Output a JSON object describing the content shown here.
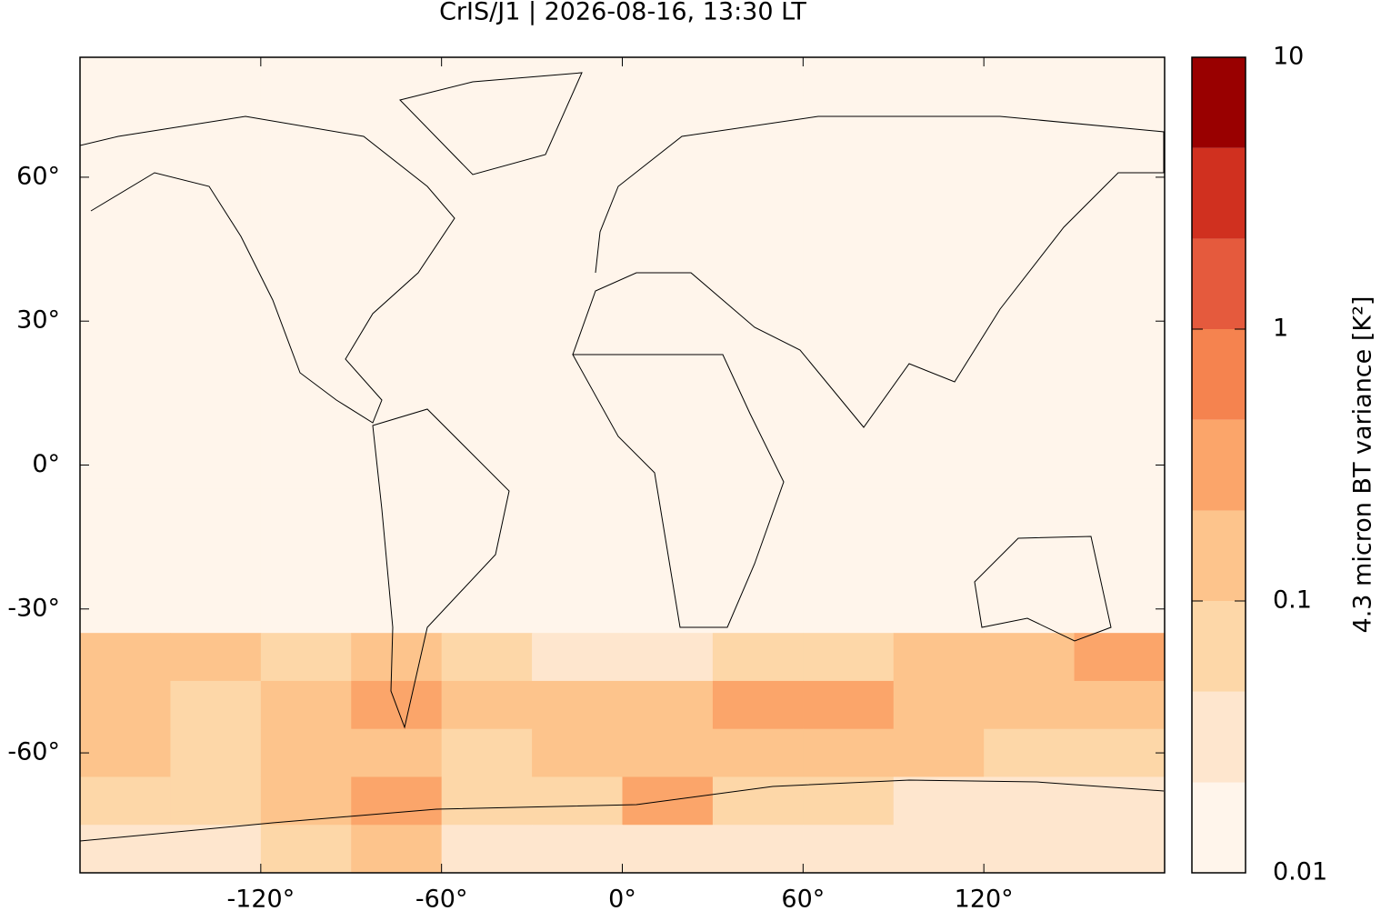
{
  "chart_data": {
    "type": "map",
    "title": "CrIS/J1 | 2026-08-16, 13:30 LT",
    "xlim": [
      -180,
      180
    ],
    "ylim": [
      -85,
      85
    ],
    "xticks": [
      {
        "value": -120,
        "label": "-120°"
      },
      {
        "value": -60,
        "label": "-60°"
      },
      {
        "value": 0,
        "label": "0°"
      },
      {
        "value": 60,
        "label": "60°"
      },
      {
        "value": 120,
        "label": "120°"
      }
    ],
    "yticks": [
      {
        "value": 60,
        "label": "60°"
      },
      {
        "value": 30,
        "label": "30°"
      },
      {
        "value": 0,
        "label": "0°"
      },
      {
        "value": -30,
        "label": "-30°"
      },
      {
        "value": -60,
        "label": "-60°"
      }
    ],
    "lon": [
      -165,
      -135,
      -105,
      -75,
      -45,
      -15,
      15,
      45,
      75,
      105,
      135,
      165
    ],
    "lat": [
      80,
      70,
      60,
      50,
      40,
      30,
      20,
      10,
      0,
      -10,
      -20,
      -30,
      -40,
      -50,
      -60,
      -70,
      -80
    ],
    "values": [
      [
        0.012,
        0.012,
        0.012,
        0.012,
        0.012,
        0.012,
        0.012,
        0.012,
        0.012,
        0.012,
        0.012,
        0.012
      ],
      [
        0.012,
        0.012,
        0.012,
        0.012,
        0.012,
        0.012,
        0.012,
        0.012,
        0.012,
        0.012,
        0.012,
        0.012
      ],
      [
        0.012,
        0.012,
        0.012,
        0.012,
        0.012,
        0.012,
        0.012,
        0.012,
        0.012,
        0.012,
        0.012,
        0.012
      ],
      [
        0.012,
        0.012,
        0.012,
        0.012,
        0.012,
        0.012,
        0.012,
        0.012,
        0.012,
        0.012,
        0.012,
        0.012
      ],
      [
        0.012,
        0.012,
        0.012,
        0.012,
        0.012,
        0.012,
        0.012,
        0.012,
        0.012,
        0.012,
        0.012,
        0.012
      ],
      [
        0.012,
        0.012,
        0.012,
        0.012,
        0.012,
        0.012,
        0.012,
        0.012,
        0.012,
        0.012,
        0.012,
        0.012
      ],
      [
        0.012,
        0.012,
        0.012,
        0.012,
        0.012,
        0.012,
        0.012,
        0.012,
        0.012,
        0.012,
        0.012,
        0.012
      ],
      [
        0.012,
        0.012,
        0.012,
        0.012,
        0.012,
        0.012,
        0.012,
        0.012,
        0.012,
        0.012,
        0.012,
        0.012
      ],
      [
        0.012,
        0.012,
        0.012,
        0.012,
        0.012,
        0.012,
        0.012,
        0.012,
        0.012,
        0.012,
        0.012,
        0.012
      ],
      [
        0.012,
        0.012,
        0.012,
        0.012,
        0.012,
        0.012,
        0.012,
        0.012,
        0.012,
        0.012,
        0.012,
        0.012
      ],
      [
        0.012,
        0.012,
        0.012,
        0.012,
        0.012,
        0.012,
        0.012,
        0.012,
        0.012,
        0.012,
        0.012,
        0.012
      ],
      [
        0.015,
        0.015,
        0.015,
        0.015,
        0.015,
        0.015,
        0.015,
        0.015,
        0.015,
        0.015,
        0.015,
        0.015
      ],
      [
        0.15,
        0.1,
        0.06,
        0.2,
        0.05,
        0.03,
        0.04,
        0.05,
        0.06,
        0.2,
        0.15,
        0.3
      ],
      [
        0.2,
        0.08,
        0.1,
        0.3,
        0.1,
        0.1,
        0.2,
        0.3,
        0.4,
        0.15,
        0.1,
        0.1
      ],
      [
        0.15,
        0.05,
        0.1,
        0.1,
        0.06,
        0.1,
        0.15,
        0.2,
        0.15,
        0.1,
        0.08,
        0.08
      ],
      [
        0.06,
        0.05,
        0.1,
        0.3,
        0.06,
        0.05,
        0.3,
        0.06,
        0.05,
        0.04,
        0.04,
        0.04
      ],
      [
        0.03,
        0.03,
        0.05,
        0.1,
        0.04,
        0.03,
        0.03,
        0.03,
        0.03,
        0.03,
        0.03,
        0.03
      ]
    ],
    "colorbar": {
      "label": "4.3 micron BT variance [K²]",
      "log": true,
      "lim": [
        0.01,
        10
      ],
      "ticks": [
        0.01,
        0.1,
        1,
        10
      ],
      "levels": [
        0.01,
        0.0215,
        0.0464,
        0.1,
        0.215,
        0.464,
        1,
        2.15,
        4.64,
        10
      ],
      "colors": [
        "#fff5eb",
        "#fee6ce",
        "#fdd7a8",
        "#fdc48c",
        "#fba56a",
        "#f5834f",
        "#e55a3d",
        "#d0301f",
        "#990000"
      ]
    }
  }
}
